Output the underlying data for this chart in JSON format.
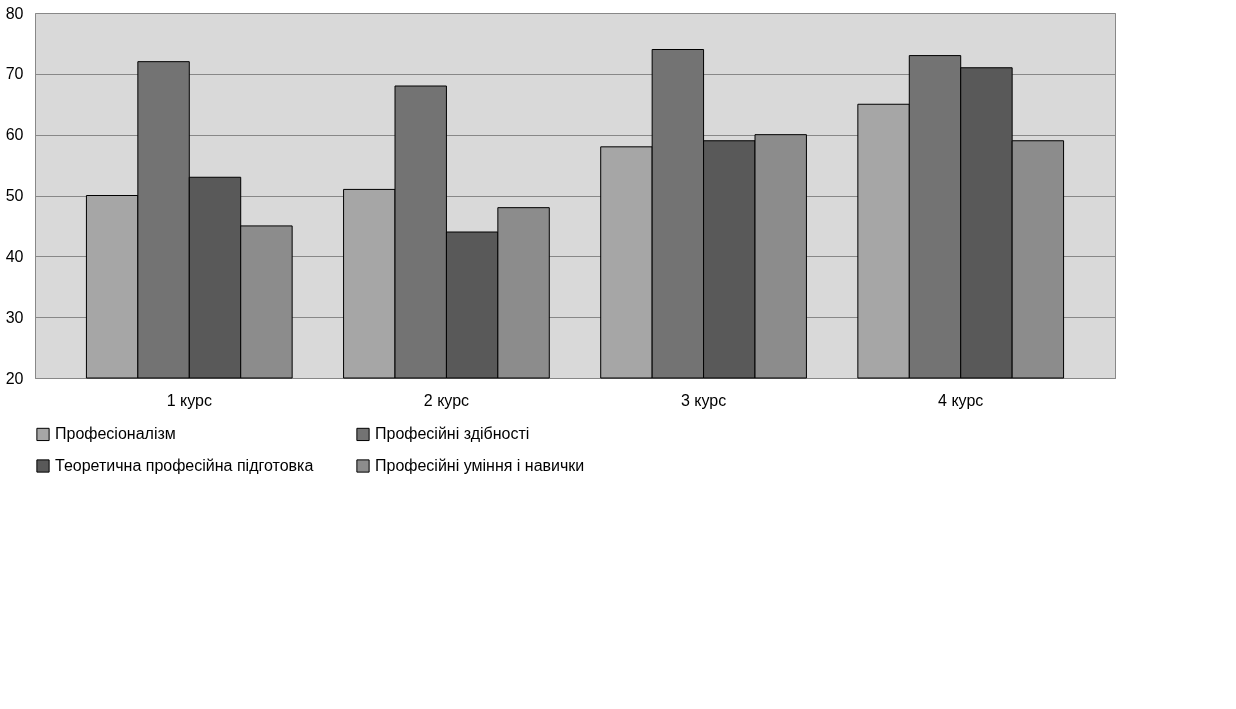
{
  "chart_data": {
    "type": "bar",
    "categories": [
      "1 курс",
      "2 курс",
      "3 курс",
      "4 курс"
    ],
    "series": [
      {
        "name": "Професіоналізм",
        "color": "#a6a6a6",
        "values": [
          50,
          51,
          58,
          65
        ]
      },
      {
        "name": "Професійні здібності",
        "color": "#737373",
        "values": [
          72,
          68,
          74,
          73
        ]
      },
      {
        "name": "Теоретична професійна підготовка",
        "color": "#595959",
        "values": [
          53,
          44,
          59,
          71
        ]
      },
      {
        "name": "Професійні уміння і навички",
        "color": "#8c8c8c",
        "values": [
          45,
          48,
          60,
          59
        ]
      }
    ],
    "ylim": [
      20,
      80
    ],
    "yticks": [
      20,
      30,
      40,
      50,
      60,
      70,
      80
    ],
    "grid": "y",
    "legend": "bottom"
  }
}
